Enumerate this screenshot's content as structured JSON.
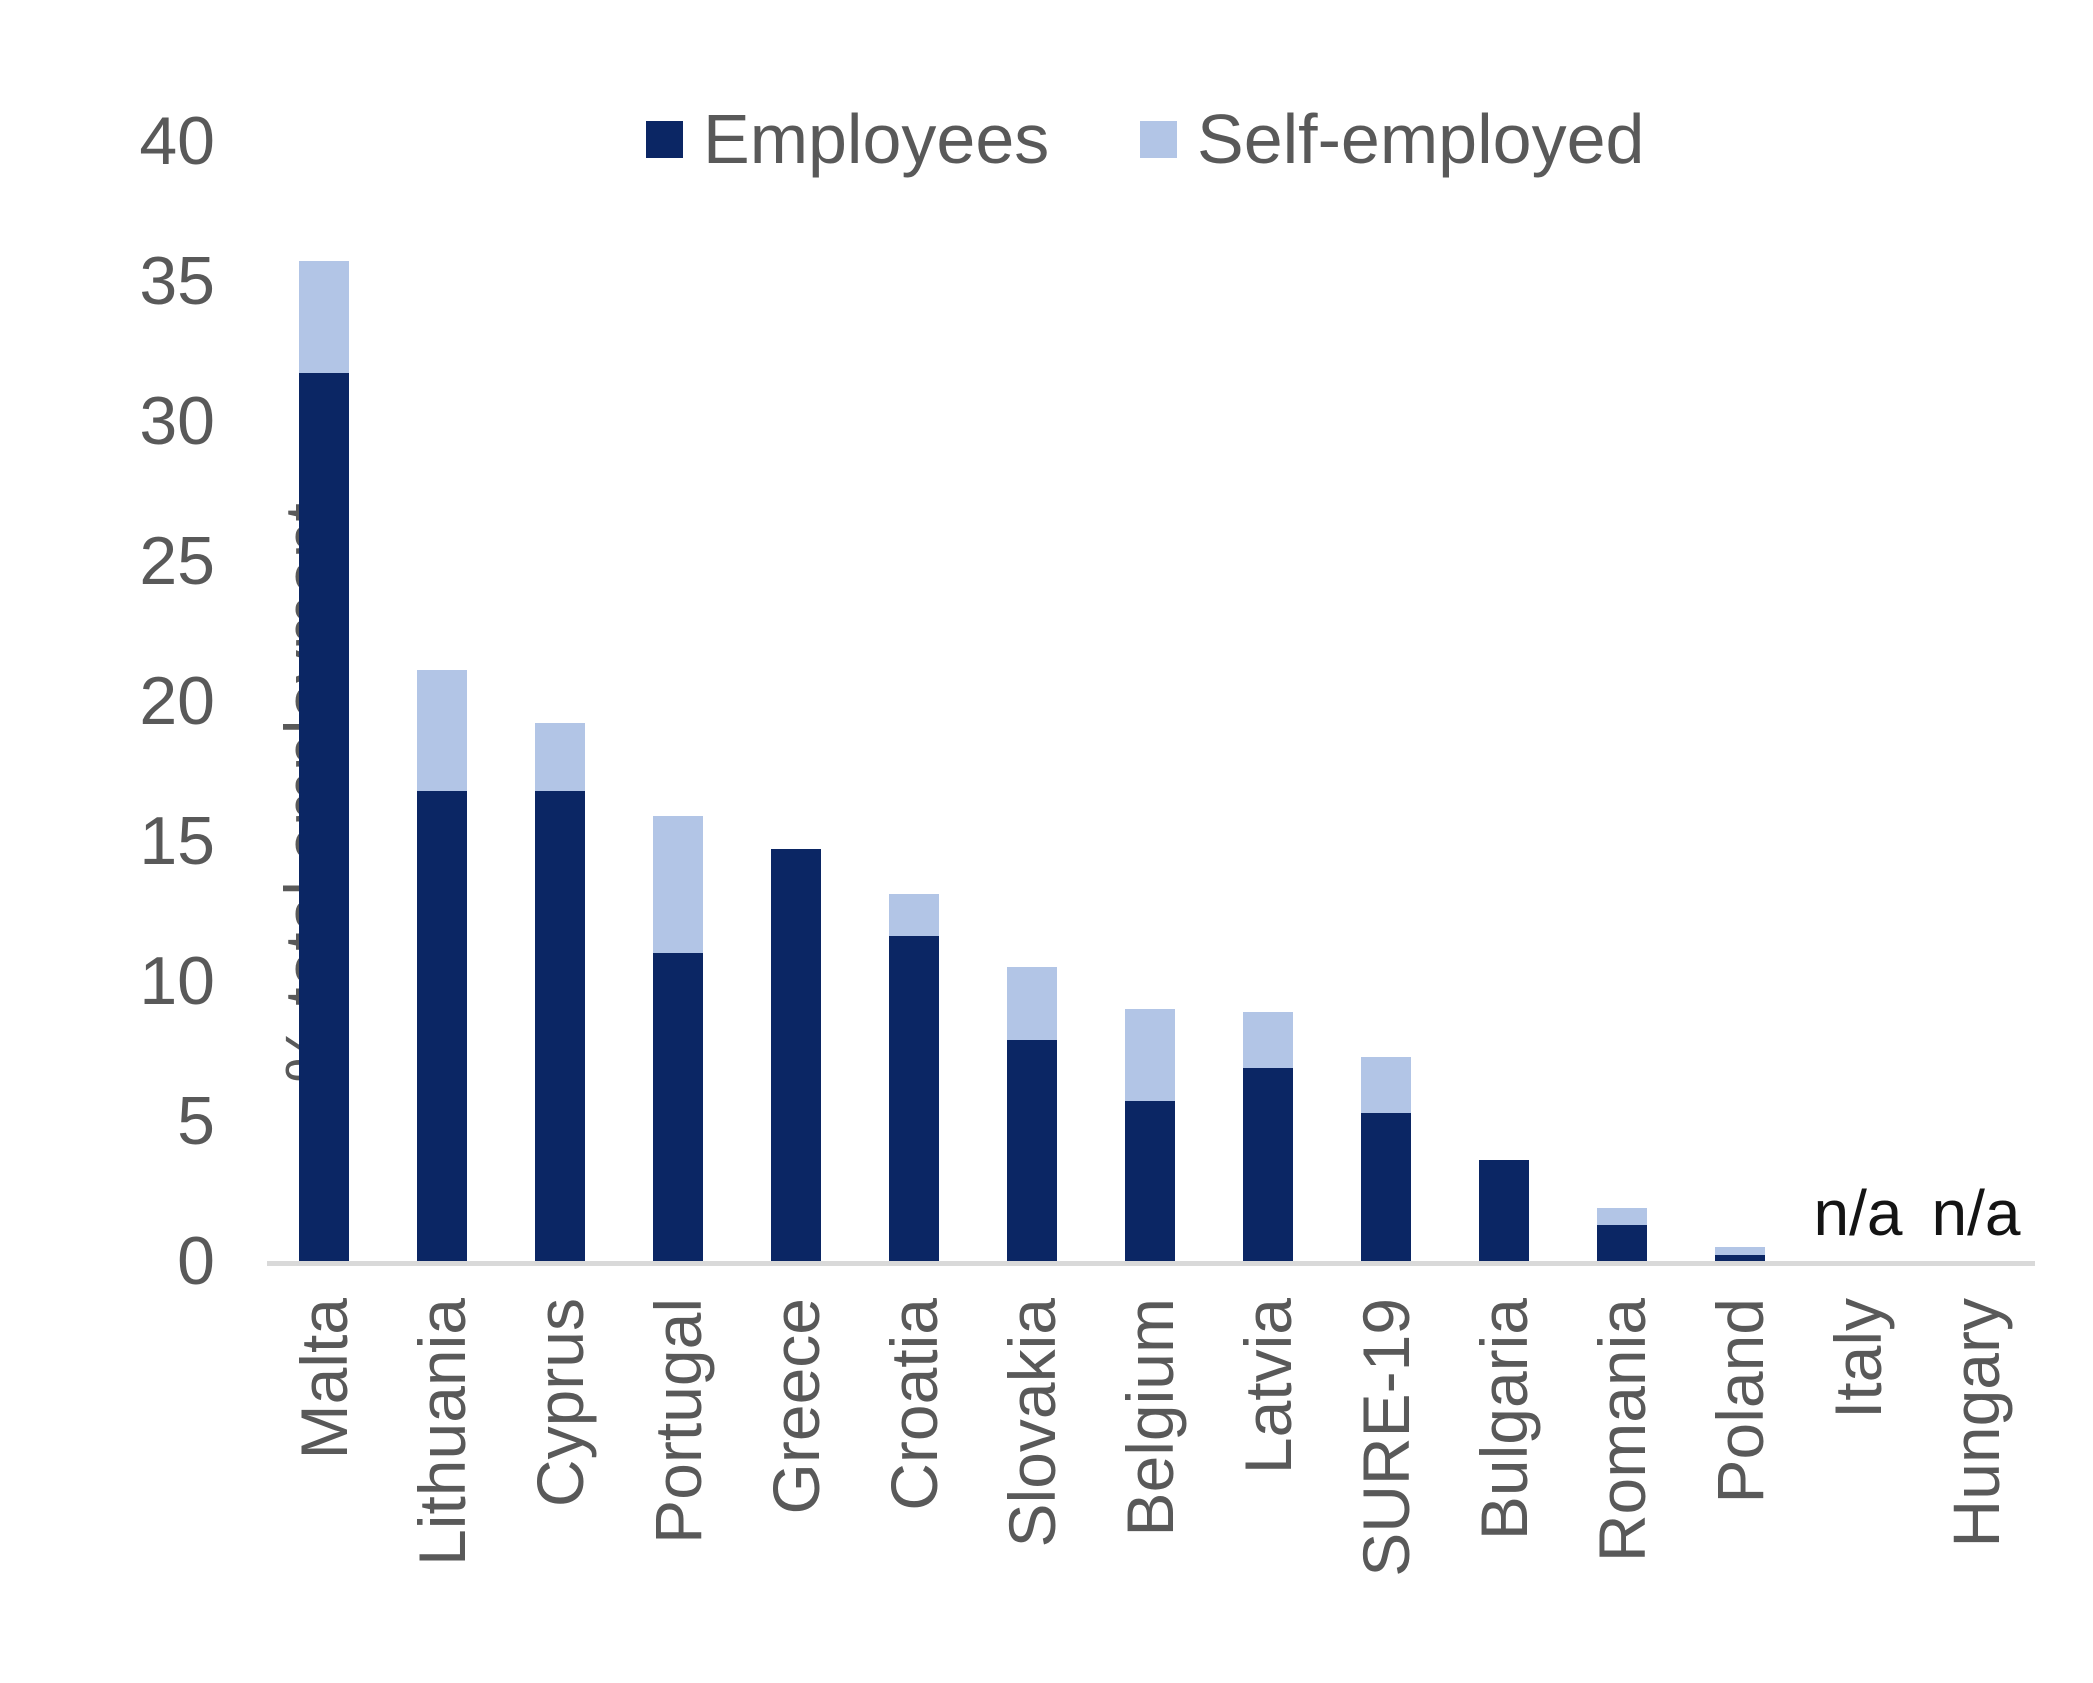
{
  "chart_data": {
    "type": "bar",
    "stacked": true,
    "title": "",
    "ylabel": "% total employment",
    "xlabel": "",
    "ylim": [
      0,
      40
    ],
    "yticks": [
      0,
      5,
      10,
      15,
      20,
      25,
      30,
      35,
      40
    ],
    "grid": false,
    "legend_position": "top",
    "na_label": "n/a",
    "categories": [
      "Malta",
      "Lithuania",
      "Cyprus",
      "Portugal",
      "Greece",
      "Croatia",
      "Slovakia",
      "Belgium",
      "Latvia",
      "SURE-19",
      "Bulgaria",
      "Romania",
      "Poland",
      "Italy",
      "Hungary"
    ],
    "series": [
      {
        "name": "Employees",
        "color": "#0b2664",
        "values": [
          31.7,
          16.8,
          16.8,
          11.0,
          14.7,
          11.6,
          7.9,
          5.7,
          6.9,
          5.3,
          3.6,
          1.3,
          0.2,
          null,
          null
        ]
      },
      {
        "name": "Self-employed",
        "color": "#b2c5e6",
        "values": [
          4.0,
          4.3,
          2.4,
          4.9,
          0,
          1.5,
          2.6,
          3.3,
          2.0,
          2.0,
          0,
          0.6,
          0.3,
          null,
          null
        ]
      }
    ],
    "colors": {
      "axis_line": "#d9d9d9",
      "tick_text": "#595959",
      "na_text": "#141414"
    }
  }
}
